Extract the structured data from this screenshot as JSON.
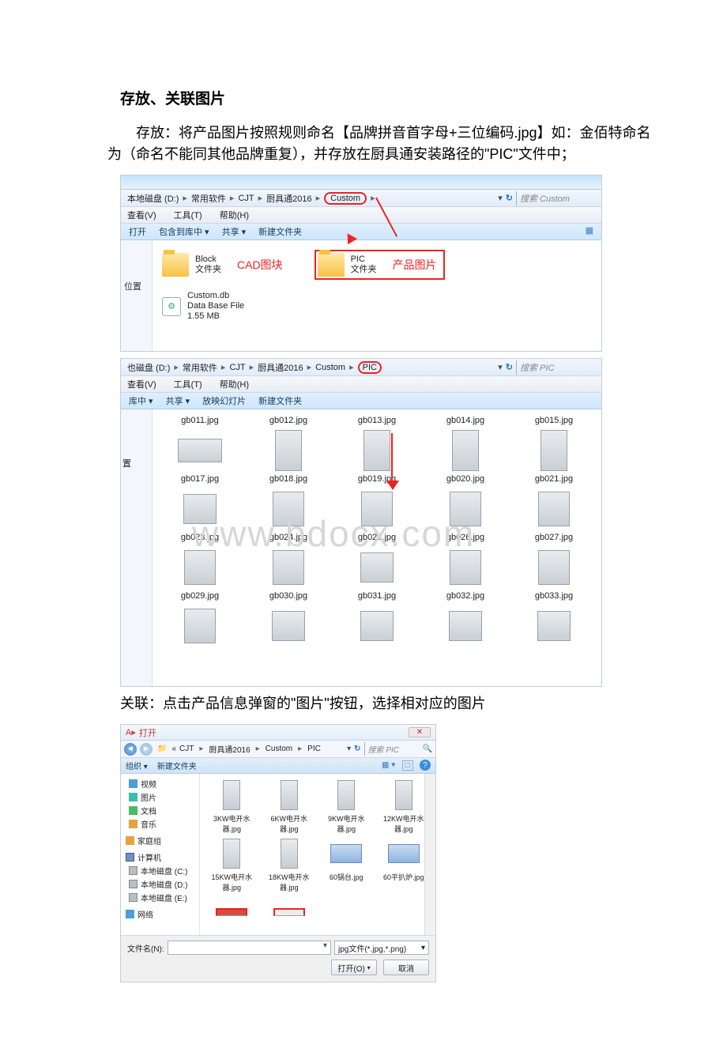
{
  "doc": {
    "heading": "存放、关联图片",
    "p1": "存放：将产品图片按照规则命名【品牌拼音首字母+三位编码.jpg】如：金佰特命名为（命名不能同其他品牌重复），并存放在厨具通安装路径的\"PIC\"文件中；",
    "p2": "关联：点击产品信息弹窗的\"图片\"按钮，选择相对应的图片"
  },
  "win1": {
    "crumbs": [
      "本地磁盘 (D:)",
      "常用软件",
      "CJT",
      "厨具通2016",
      "Custom"
    ],
    "searchPlaceholder": "搜索 Custom",
    "menus": [
      "查看(V)",
      "工具(T)",
      "帮助(H)"
    ],
    "toolbar": [
      "打开",
      "包含到库中 ▾",
      "共享 ▾",
      "新建文件夹"
    ],
    "sideLabel": "位置",
    "folders": {
      "block": {
        "name": "Block",
        "sub": "文件夹",
        "label": "CAD图块"
      },
      "pic": {
        "name": "PIC",
        "sub": "文件夹",
        "label": "产品图片"
      }
    },
    "file": {
      "name": "Custom.db",
      "line2": "Data Base File",
      "line3": "1.55 MB"
    },
    "colors": {
      "highlight": "#e22"
    }
  },
  "win2": {
    "crumbs": [
      "也磁盘 (D:)",
      "常用软件",
      "CJT",
      "厨具通2016",
      "Custom",
      "PIC"
    ],
    "searchPlaceholder": "搜索 PIC",
    "menus": [
      "查看(V)",
      "工具(T)",
      "帮助(H)"
    ],
    "toolbar": [
      "库中 ▾",
      "共享 ▾",
      "放映幻灯片",
      "新建文件夹"
    ],
    "sideLabel": "置",
    "thumbs": [
      {
        "label": "gb011.jpg",
        "shape": "sz-wide"
      },
      {
        "label": "gb012.jpg",
        "shape": "sz-tall"
      },
      {
        "label": "gb013.jpg",
        "shape": "sz-tall"
      },
      {
        "label": "gb014.jpg",
        "shape": "sz-tall"
      },
      {
        "label": "gb015.jpg",
        "shape": "sz-tall"
      },
      {
        "label": "gb017.jpg",
        "shape": "sz-sq"
      },
      {
        "label": "gb018.jpg",
        "shape": "sz-med"
      },
      {
        "label": "gb019.jpg",
        "shape": "sz-med"
      },
      {
        "label": "gb020.jpg",
        "shape": "sz-med"
      },
      {
        "label": "gb021.jpg",
        "shape": "sz-med"
      },
      {
        "label": "gb023.jpg",
        "shape": "sz-med"
      },
      {
        "label": "gb024.jpg",
        "shape": "sz-med"
      },
      {
        "label": "gb025.jpg",
        "shape": "sz-sq"
      },
      {
        "label": "gb026.jpg",
        "shape": "sz-med"
      },
      {
        "label": "gb027.jpg",
        "shape": "sz-med"
      },
      {
        "label": "gb029.jpg",
        "shape": "sz-med"
      },
      {
        "label": "gb030.jpg",
        "shape": "sz-sq"
      },
      {
        "label": "gb031.jpg",
        "shape": "sz-sq"
      },
      {
        "label": "gb032.jpg",
        "shape": "sz-sq"
      },
      {
        "label": "gb033.jpg",
        "shape": "sz-sq"
      }
    ],
    "watermark": "www.bdocx.com"
  },
  "win3": {
    "title": "打开",
    "crumbs": [
      "«",
      "CJT",
      "厨具通2016",
      "Custom",
      "PIC"
    ],
    "searchPlaceholder": "搜索 PIC",
    "toolbar": [
      "组织 ▾",
      "新建文件夹"
    ],
    "tree": [
      {
        "icon": "ic-blue",
        "label": "视频"
      },
      {
        "icon": "ic-teal",
        "label": "图片"
      },
      {
        "icon": "ic-green",
        "label": "文档"
      },
      {
        "icon": "ic-org",
        "label": "音乐"
      },
      {
        "icon": "ic-org",
        "label": "家庭组",
        "group": true
      },
      {
        "icon": "ic-mon",
        "label": "计算机",
        "group": true
      },
      {
        "icon": "ic-disk",
        "label": "本地磁盘 (C:)"
      },
      {
        "icon": "ic-disk",
        "label": "本地磁盘 (D:)"
      },
      {
        "icon": "ic-disk",
        "label": "本地磁盘 (E:)"
      },
      {
        "icon": "ic-blue",
        "label": "网络",
        "group": true
      }
    ],
    "thumbs": [
      {
        "label": "3KW电开水器.jpg",
        "sh": "s-tall"
      },
      {
        "label": "6KW电开水器.jpg",
        "sh": "s-tall"
      },
      {
        "label": "9KW电开水器.jpg",
        "sh": "s-tall"
      },
      {
        "label": "12KW电开水器.jpg",
        "sh": "s-tall"
      },
      {
        "label": "15KW电开水器.jpg",
        "sh": "s-tall"
      },
      {
        "label": "18KW电开水器.jpg",
        "sh": "s-tall"
      },
      {
        "label": "60锅台.jpg",
        "sh": "s-wide",
        "blue": true
      },
      {
        "label": "60平扒炉.jpg",
        "sh": "s-wide",
        "blue": true
      }
    ],
    "fnameLabel": "文件名(N):",
    "ftype": "jpg文件(*.jpg,*.png)",
    "btnOpen": "打开(O)",
    "btnCancel": "取消"
  }
}
